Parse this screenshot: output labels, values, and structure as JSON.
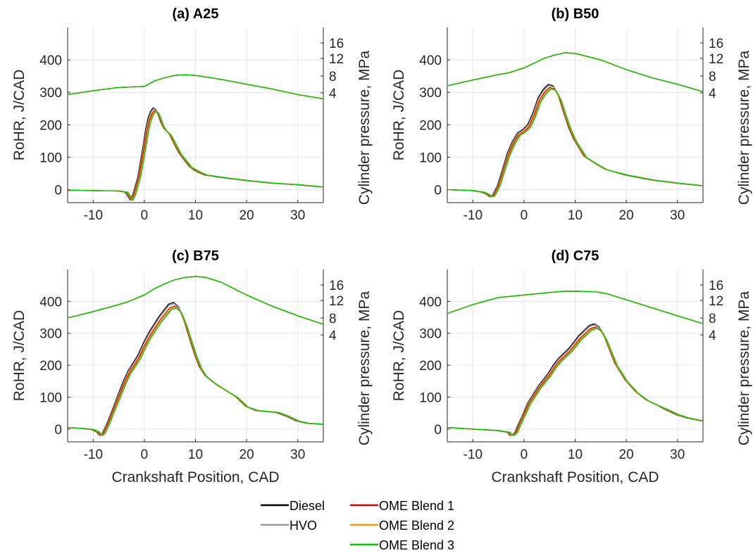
{
  "colors": {
    "Diesel": "#000000",
    "HVO": "#999999",
    "OME Blend 1": "#e60000",
    "OME Blend 2": "#ff9900",
    "OME Blend 3": "#00cc00"
  },
  "legend": [
    "Diesel",
    "HVO",
    "OME Blend 1",
    "OME Blend 2",
    "OME Blend 3"
  ],
  "chart_data": [
    {
      "type": "line",
      "title": "(a) A25",
      "xlabel": "",
      "ylabel": "RoHR, J/CAD",
      "y2label": "Cylinder pressure, MPa",
      "xlim": [
        -15,
        35
      ],
      "ylim": [
        -40,
        500
      ],
      "xticks": [
        -10,
        0,
        10,
        20,
        30
      ],
      "yticks": [
        0,
        100,
        200,
        300,
        400
      ],
      "y2ticks": [
        "16",
        "12",
        "8",
        "4"
      ],
      "grid": true,
      "series": [
        {
          "name": "RoHR",
          "x": [
            -15,
            -10,
            -5,
            -3.5,
            -3,
            -2.5,
            -2,
            -1,
            0,
            0.5,
            1,
            1.5,
            2,
            2.5,
            3,
            3.5,
            4,
            5,
            6,
            7,
            8,
            9,
            10,
            11,
            12,
            15,
            20,
            25,
            30,
            35
          ],
          "values": [
            -2,
            -3,
            -4,
            -8,
            -20,
            -32,
            -15,
            40,
            130,
            180,
            215,
            235,
            245,
            240,
            222,
            200,
            185,
            170,
            140,
            110,
            90,
            70,
            60,
            52,
            45,
            38,
            28,
            20,
            15,
            8
          ]
        },
        {
          "name": "Cylinder pressure",
          "x": [
            -15,
            -10,
            -5,
            0,
            2,
            4,
            6,
            8,
            10,
            15,
            20,
            25,
            30,
            35
          ],
          "values": [
            293,
            305,
            315,
            318,
            335,
            345,
            352,
            354,
            352,
            340,
            325,
            310,
            293,
            280
          ]
        }
      ]
    },
    {
      "type": "line",
      "title": "(b) B50",
      "xlabel": "",
      "ylabel": "RoHR, J/CAD",
      "y2label": "Cylinder pressure, MPa",
      "xlim": [
        -15,
        35
      ],
      "ylim": [
        -40,
        500
      ],
      "xticks": [
        -10,
        0,
        10,
        20,
        30
      ],
      "yticks": [
        0,
        100,
        200,
        300,
        400
      ],
      "y2ticks": [
        "16",
        "12",
        "8",
        "4"
      ],
      "grid": true,
      "series": [
        {
          "name": "RoHR",
          "x": [
            -15,
            -10,
            -8,
            -7,
            -6.5,
            -6,
            -5,
            -4,
            -3,
            -2,
            -1,
            0,
            1,
            2,
            3,
            4,
            5,
            6,
            7,
            8,
            9,
            10,
            12,
            14,
            16,
            20,
            25,
            30,
            35
          ],
          "values": [
            0,
            -3,
            -8,
            -15,
            -22,
            -20,
            10,
            60,
            110,
            145,
            170,
            180,
            195,
            230,
            275,
            300,
            315,
            310,
            280,
            230,
            185,
            150,
            100,
            80,
            62,
            45,
            30,
            20,
            12
          ]
        },
        {
          "name": "Cylinder pressure",
          "x": [
            -15,
            -10,
            -5,
            -3,
            0,
            2,
            4,
            6,
            8,
            10,
            15,
            20,
            25,
            30,
            35
          ],
          "values": [
            320,
            338,
            355,
            360,
            375,
            390,
            405,
            415,
            422,
            420,
            400,
            370,
            345,
            325,
            302
          ]
        }
      ]
    },
    {
      "type": "line",
      "title": "(c) B75",
      "xlabel": "Crankshaft Position, CAD",
      "ylabel": "RoHR, J/CAD",
      "y2label": "Cylinder pressure, MPa",
      "xlim": [
        -15,
        35
      ],
      "ylim": [
        -40,
        500
      ],
      "xticks": [
        -10,
        0,
        10,
        20,
        30
      ],
      "yticks": [
        0,
        100,
        200,
        300,
        400
      ],
      "y2ticks": [
        "16",
        "12",
        "8",
        "4"
      ],
      "grid": true,
      "series": [
        {
          "name": "RoHR",
          "x": [
            -15,
            -12,
            -10,
            -9,
            -8.5,
            -8,
            -7,
            -6,
            -5,
            -4,
            -3,
            -2,
            -1,
            0,
            1,
            2,
            3,
            4,
            5,
            6,
            7,
            8,
            9,
            10,
            11,
            12,
            14,
            16,
            18,
            20,
            22,
            24,
            26,
            28,
            30,
            32,
            35
          ],
          "values": [
            5,
            2,
            -2,
            -10,
            -20,
            -15,
            20,
            60,
            100,
            140,
            175,
            200,
            225,
            260,
            290,
            315,
            340,
            360,
            380,
            385,
            370,
            330,
            280,
            230,
            190,
            165,
            140,
            120,
            100,
            70,
            58,
            55,
            52,
            40,
            25,
            18,
            15
          ]
        },
        {
          "name": "Cylinder pressure",
          "x": [
            -15,
            -10,
            -5,
            -3,
            0,
            2,
            4,
            6,
            8,
            10,
            12,
            15,
            20,
            25,
            30,
            35
          ],
          "values": [
            348,
            368,
            390,
            400,
            420,
            440,
            455,
            468,
            475,
            478,
            475,
            460,
            420,
            385,
            355,
            328
          ]
        }
      ]
    },
    {
      "type": "line",
      "title": "(d) C75",
      "xlabel": "Crankshaft Position, CAD",
      "ylabel": "RoHR, J/CAD",
      "y2label": "Cylinder pressure, MPa",
      "xlim": [
        -15,
        35
      ],
      "ylim": [
        -40,
        500
      ],
      "xticks": [
        -10,
        0,
        10,
        20,
        30
      ],
      "yticks": [
        0,
        100,
        200,
        300,
        400
      ],
      "y2ticks": [
        "16",
        "12",
        "8",
        "4"
      ],
      "grid": true,
      "series": [
        {
          "name": "RoHR",
          "x": [
            -15,
            -10,
            -5,
            -3,
            -2.5,
            -2,
            -1.5,
            -1,
            0,
            1,
            2,
            3,
            4,
            5,
            6,
            7,
            8,
            9,
            10,
            11,
            12,
            13,
            14,
            15,
            16,
            17,
            18,
            20,
            22,
            24,
            26,
            28,
            30,
            32,
            35
          ],
          "values": [
            5,
            0,
            -5,
            -10,
            -20,
            -18,
            -10,
            10,
            45,
            80,
            105,
            130,
            150,
            170,
            195,
            215,
            230,
            245,
            265,
            285,
            300,
            315,
            320,
            310,
            280,
            240,
            200,
            150,
            115,
            90,
            75,
            60,
            45,
            35,
            25
          ]
        },
        {
          "name": "Cylinder pressure",
          "x": [
            -15,
            -10,
            -5,
            0,
            5,
            8,
            10,
            14,
            16,
            20,
            25,
            30,
            35
          ],
          "values": [
            362,
            390,
            412,
            420,
            428,
            432,
            432,
            430,
            425,
            405,
            380,
            355,
            330
          ]
        }
      ]
    }
  ]
}
